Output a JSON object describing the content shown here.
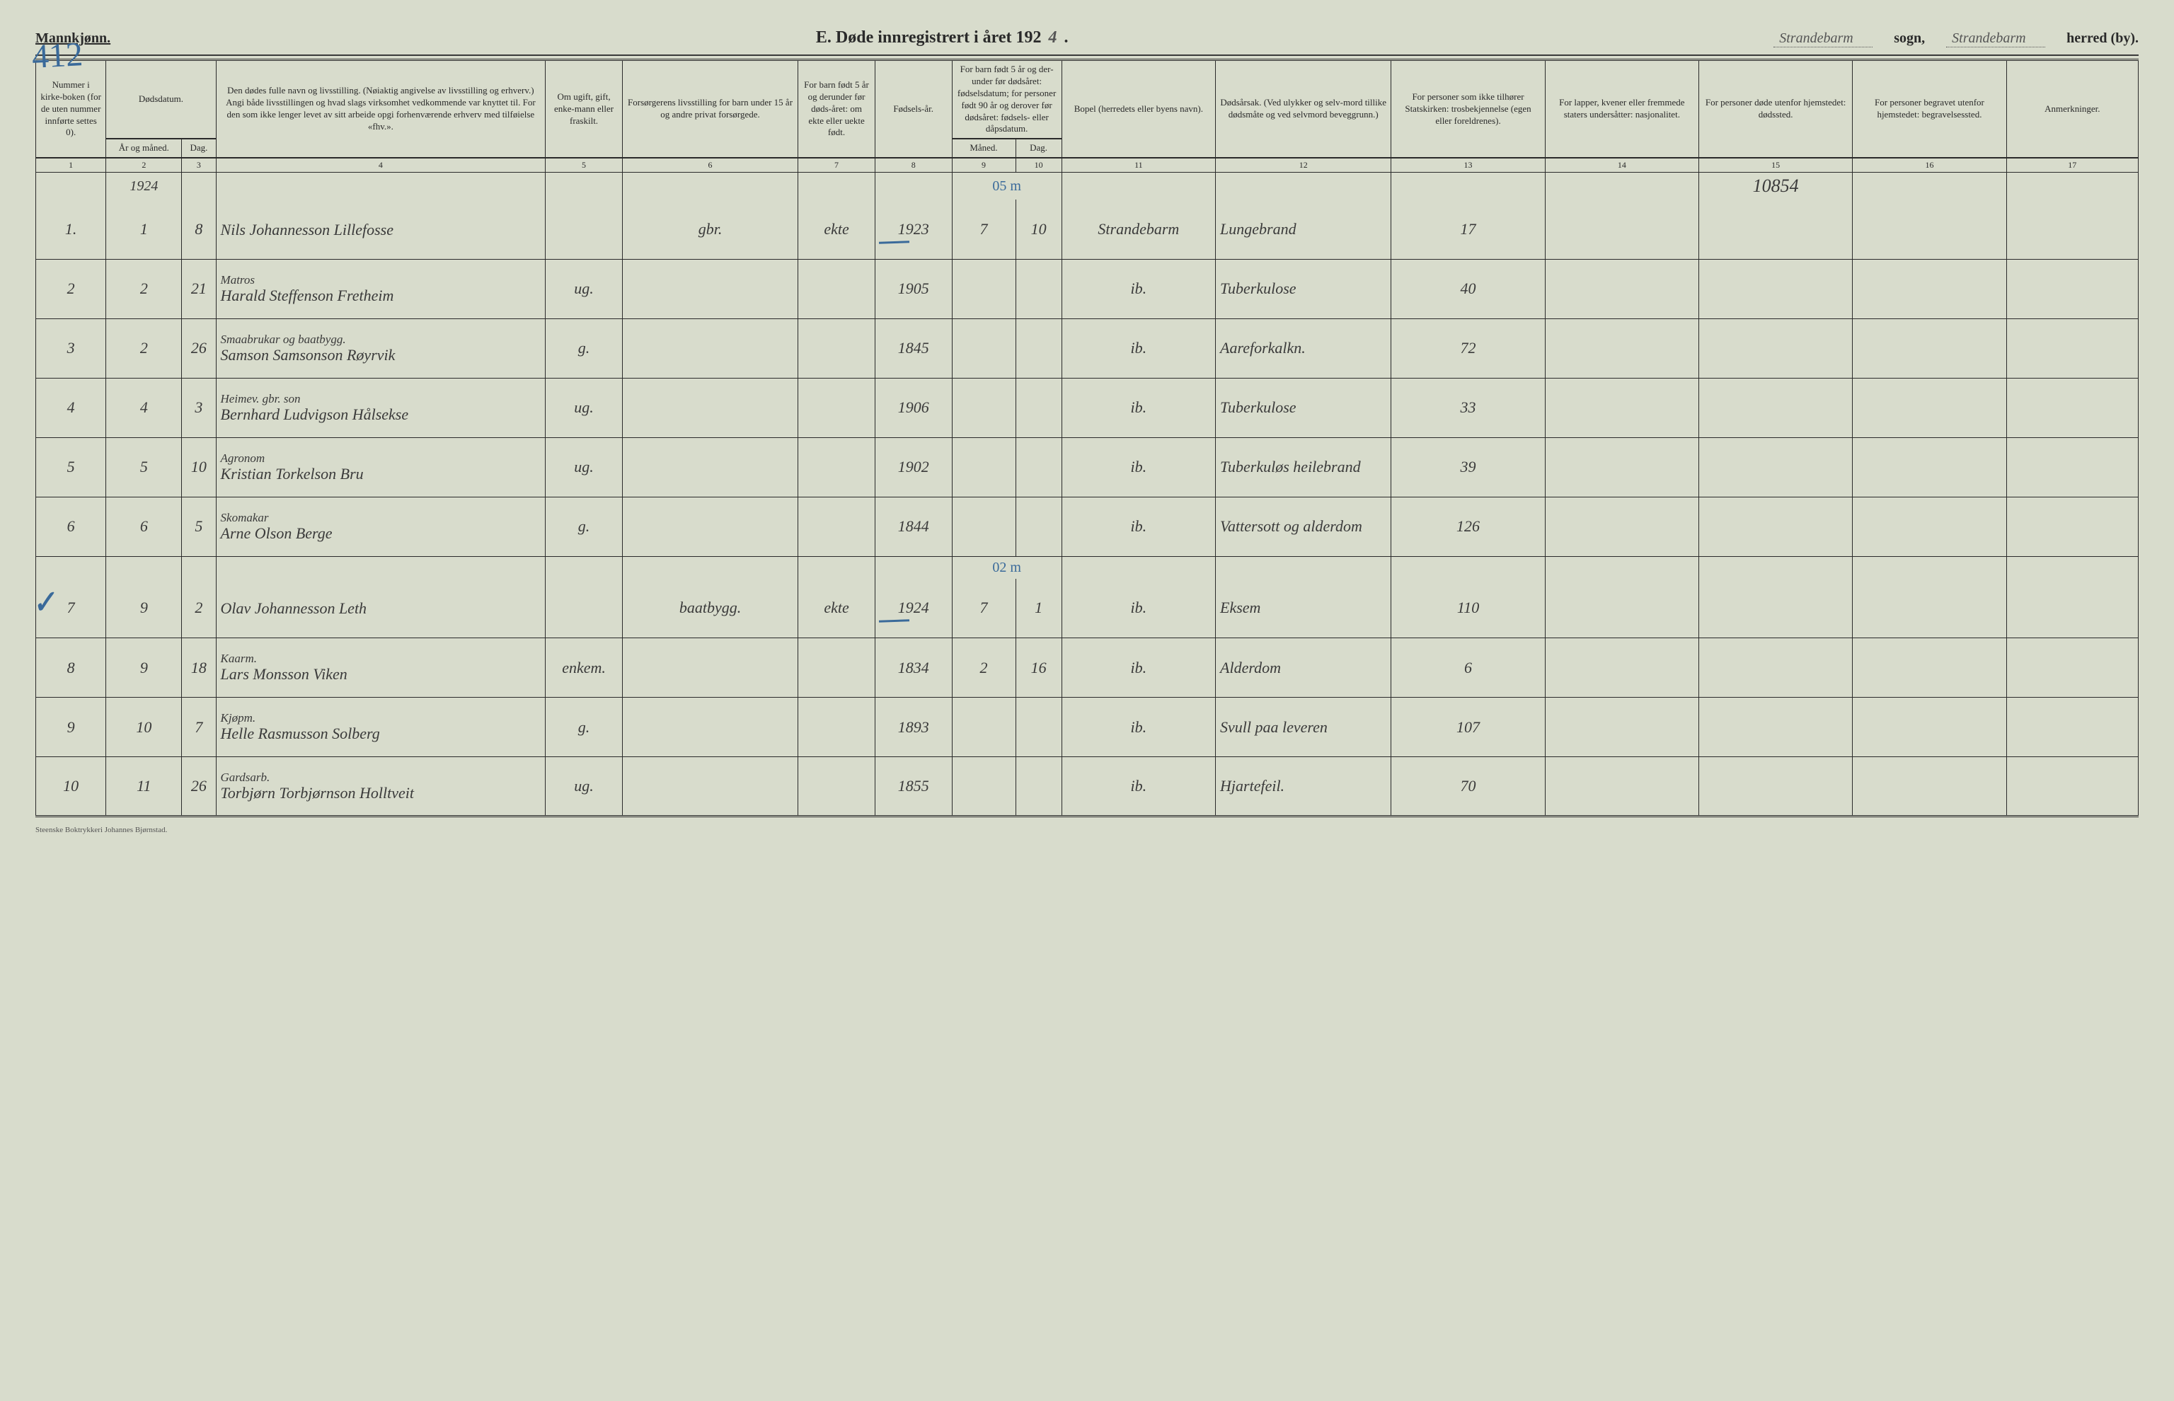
{
  "header": {
    "mannkjonn": "Mannkjønn.",
    "page_number_handwritten": "412",
    "title_prefix": "E.  Døde innregistrert i året 192",
    "year_suffix_hand": "4",
    "title_period": ".",
    "sogn_value": "Strandebarm",
    "sogn_label": "sogn,",
    "herred_value": "Strandebarm",
    "herred_label": "herred (by)."
  },
  "columns": {
    "c1": "Nummer i kirke-boken (for de uten nummer innførte settes 0).",
    "c2_top": "Dødsdatum.",
    "c2a": "År og måned.",
    "c2b": "Dag.",
    "c4": "Den dødes fulle navn og livsstilling.\n(Nøiaktig angivelse av livsstilling og erhverv.)\nAngi både livsstillingen og hvad slags virksomhet vedkommende var knyttet til.\nFor den som ikke lenger levet av sitt arbeide opgi forhenværende erhverv med tilføielse «fhv.».",
    "c5": "Om ugift, gift, enke-mann eller fraskilt.",
    "c6": "Forsørgerens livsstilling\nfor barn under 15 år og andre privat forsørgede.",
    "c7": "For barn født 5 år og derunder før døds-året: om ekte eller uekte født.",
    "c8": "Fødsels-år.",
    "c9_top": "For barn født 5 år og der-under før dødsåret: fødselsdatum; for personer født 90 år og derover før dødsåret: fødsels- eller dåpsdatum.",
    "c9a": "Måned.",
    "c9b": "Dag.",
    "c11": "Bopel (herredets eller byens navn).",
    "c12": "Dødsårsak.\n(Ved ulykker og selv-mord tillike dødsmåte og ved selvmord beveggrunn.)",
    "c13": "For personer som ikke tilhører Statskirken: trosbekjennelse (egen eller foreldrenes).",
    "c14": "For lapper, kvener eller fremmede staters undersåtter: nasjonalitet.",
    "c15": "For personer døde utenfor hjemstedet: dødssted.",
    "c16": "For personer begravet utenfor hjemstedet: begravelsessted.",
    "c17": "Anmerkninger."
  },
  "colnums": [
    "1",
    "2",
    "3",
    "4",
    "5",
    "6",
    "7",
    "8",
    "9",
    "10",
    "11",
    "12",
    "13",
    "14",
    "15",
    "16",
    "17"
  ],
  "preheader": {
    "year": "1924",
    "blue_note_1": "05 m",
    "hand_15": "10854"
  },
  "rows": [
    {
      "n": "1.",
      "mon": "1",
      "day": "8",
      "sub": "",
      "name": "Nils Johannesson Lillefosse",
      "stat": "",
      "fors": "gbr.",
      "ekte": "ekte",
      "faar": "1923",
      "fm": "7",
      "fd": "10",
      "bopel": "Strandebarm",
      "aarsak": "Lungebrand",
      "c13": "17",
      "c15": "",
      "row_class": "blue-strike"
    },
    {
      "n": "2",
      "mon": "2",
      "day": "21",
      "sub": "Matros",
      "name": "Harald Steffenson Fretheim",
      "stat": "ug.",
      "fors": "",
      "ekte": "",
      "faar": "1905",
      "fm": "",
      "fd": "",
      "bopel": "ib.",
      "aarsak": "Tuberkulose",
      "c13": "40",
      "c15": ""
    },
    {
      "n": "3",
      "mon": "2",
      "day": "26",
      "sub": "Smaabrukar og baatbygg.",
      "name": "Samson Samsonson Røyrvik",
      "stat": "g.",
      "fors": "",
      "ekte": "",
      "faar": "1845",
      "fm": "",
      "fd": "",
      "bopel": "ib.",
      "aarsak": "Aareforkalkn.",
      "c13": "72",
      "c15": ""
    },
    {
      "n": "4",
      "mon": "4",
      "day": "3",
      "sub": "Heimev. gbr. son",
      "name": "Bernhard Ludvigson Hålsekse",
      "stat": "ug.",
      "fors": "",
      "ekte": "",
      "faar": "1906",
      "fm": "",
      "fd": "",
      "bopel": "ib.",
      "aarsak": "Tuberkulose",
      "c13": "33",
      "c15": ""
    },
    {
      "n": "5",
      "mon": "5",
      "day": "10",
      "sub": "Agronom",
      "name": "Kristian Torkelson Bru",
      "stat": "ug.",
      "fors": "",
      "ekte": "",
      "faar": "1902",
      "fm": "",
      "fd": "",
      "bopel": "ib.",
      "aarsak": "Tuberkuløs heilebrand",
      "c13": "39",
      "c15": ""
    },
    {
      "n": "6",
      "mon": "6",
      "day": "5",
      "sub": "Skomakar",
      "name": "Arne Olson Berge",
      "stat": "g.",
      "fors": "",
      "ekte": "",
      "faar": "1844",
      "fm": "",
      "fd": "",
      "bopel": "ib.",
      "aarsak": "Vattersott og alderdom",
      "c13": "126",
      "c15": ""
    },
    {
      "n": "7",
      "mon": "9",
      "day": "2",
      "sub": "",
      "name": "Olav Johannesson Leth",
      "stat": "",
      "fors": "baatbygg.",
      "ekte": "ekte",
      "faar": "1924",
      "fm": "7",
      "fd": "1",
      "bopel": "ib.",
      "aarsak": "Eksem",
      "c13": "110",
      "c15": "",
      "tick": true,
      "blue_note": "02 m",
      "row_class": "blue-strike"
    },
    {
      "n": "8",
      "mon": "9",
      "day": "18",
      "sub": "Kaarm.",
      "name": "Lars Monsson Viken",
      "stat": "enkem.",
      "fors": "",
      "ekte": "",
      "faar": "1834",
      "fm": "2",
      "fd": "16",
      "bopel": "ib.",
      "aarsak": "Alderdom",
      "c13": "6",
      "c15": ""
    },
    {
      "n": "9",
      "mon": "10",
      "day": "7",
      "sub": "Kjøpm.",
      "name": "Helle Rasmusson Solberg",
      "stat": "g.",
      "fors": "",
      "ekte": "",
      "faar": "1893",
      "fm": "",
      "fd": "",
      "bopel": "ib.",
      "aarsak": "Svull paa leveren",
      "c13": "107",
      "c15": ""
    },
    {
      "n": "10",
      "mon": "11",
      "day": "26",
      "sub": "Gardsarb.",
      "name": "Torbjørn Torbjørnson Holltveit",
      "stat": "ug.",
      "fors": "",
      "ekte": "",
      "faar": "1855",
      "fm": "",
      "fd": "",
      "bopel": "ib.",
      "aarsak": "Hjartefeil.",
      "c13": "70",
      "c15": ""
    }
  ],
  "footer": "Steenske Boktrykkeri Johannes Bjørnstad."
}
